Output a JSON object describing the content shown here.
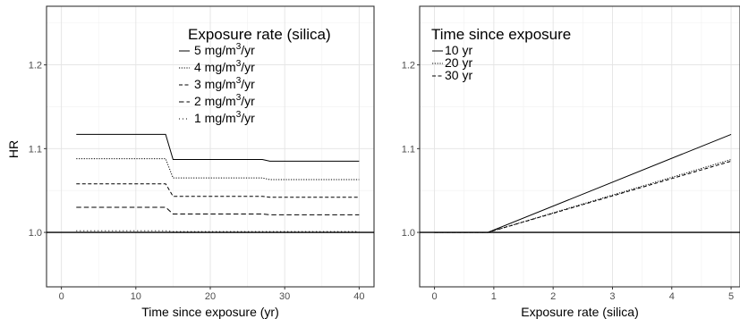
{
  "chart_data": [
    {
      "type": "line",
      "title": "",
      "xlabel": "Time since exposure (yr)",
      "ylabel": "HR",
      "xlim": [
        -2,
        42
      ],
      "ylim": [
        0.935,
        1.27
      ],
      "xticks": [
        0,
        10,
        20,
        30,
        40
      ],
      "yticks": [
        1.0,
        1.1,
        1.2
      ],
      "xtick_labels": [
        "0",
        "10",
        "20",
        "30",
        "40"
      ],
      "ytick_labels": [
        "1.0",
        "1.1",
        "1.2"
      ],
      "grid": true,
      "legend": {
        "title": "Exposure rate (silica)",
        "position": "top-right",
        "labels": [
          {
            "text": "5 mg/m",
            "sup": "3",
            "suffix": "/yr"
          },
          {
            "text": "4 mg/m",
            "sup": "3",
            "suffix": "/yr"
          },
          {
            "text": "3 mg/m",
            "sup": "3",
            "suffix": "/yr"
          },
          {
            "text": "2 mg/m",
            "sup": "3",
            "suffix": "/yr"
          },
          {
            "text": "1 mg/m",
            "sup": "3",
            "suffix": "/yr"
          }
        ]
      },
      "reference_line": 1.0,
      "series": [
        {
          "name": "5 mg/m³/yr",
          "dash": "solid",
          "x": [
            2,
            14,
            15,
            27,
            28,
            40
          ],
          "y": [
            1.117,
            1.117,
            1.087,
            1.087,
            1.085,
            1.085
          ]
        },
        {
          "name": "4 mg/m³/yr",
          "dash": "dotted",
          "x": [
            2,
            14,
            15,
            27,
            28,
            40
          ],
          "y": [
            1.088,
            1.088,
            1.065,
            1.065,
            1.063,
            1.063
          ]
        },
        {
          "name": "3 mg/m³/yr",
          "dash": "dashed",
          "x": [
            2,
            14,
            15,
            27,
            28,
            40
          ],
          "y": [
            1.058,
            1.058,
            1.043,
            1.043,
            1.042,
            1.042
          ]
        },
        {
          "name": "2 mg/m³/yr",
          "dash": "longdash",
          "x": [
            2,
            14,
            15,
            27,
            28,
            40
          ],
          "y": [
            1.03,
            1.03,
            1.022,
            1.022,
            1.021,
            1.021
          ]
        },
        {
          "name": "1 mg/m³/yr",
          "dash": "sparse",
          "x": [
            2,
            14,
            15,
            27,
            28,
            40
          ],
          "y": [
            1.002,
            1.002,
            1.001,
            1.001,
            1.001,
            1.001
          ]
        }
      ]
    },
    {
      "type": "line",
      "title": "",
      "xlabel": "Exposure rate (silica)",
      "ylabel": "",
      "xlim": [
        -0.25,
        5.15
      ],
      "ylim": [
        0.935,
        1.27
      ],
      "xticks": [
        0,
        1,
        2,
        3,
        4,
        5
      ],
      "yticks": [
        1.0,
        1.1,
        1.2
      ],
      "xtick_labels": [
        "0",
        "1",
        "2",
        "3",
        "4",
        "5"
      ],
      "ytick_labels": [
        "1.0",
        "1.1",
        "1.2"
      ],
      "grid": true,
      "legend": {
        "title": "Time since exposure",
        "position": "top-left",
        "labels": [
          {
            "text": "10 yr"
          },
          {
            "text": "20 yr"
          },
          {
            "text": "30 yr"
          }
        ]
      },
      "reference_line": 1.0,
      "series": [
        {
          "name": "10 yr",
          "dash": "solid",
          "x": [
            0,
            0.9,
            5
          ],
          "y": [
            1.0,
            1.0,
            1.117
          ]
        },
        {
          "name": "20 yr",
          "dash": "dotted",
          "x": [
            0,
            0.9,
            5
          ],
          "y": [
            1.0,
            1.0,
            1.087
          ]
        },
        {
          "name": "30 yr",
          "dash": "dashed",
          "x": [
            0,
            0.9,
            5
          ],
          "y": [
            1.0,
            1.0,
            1.085
          ]
        }
      ]
    }
  ]
}
